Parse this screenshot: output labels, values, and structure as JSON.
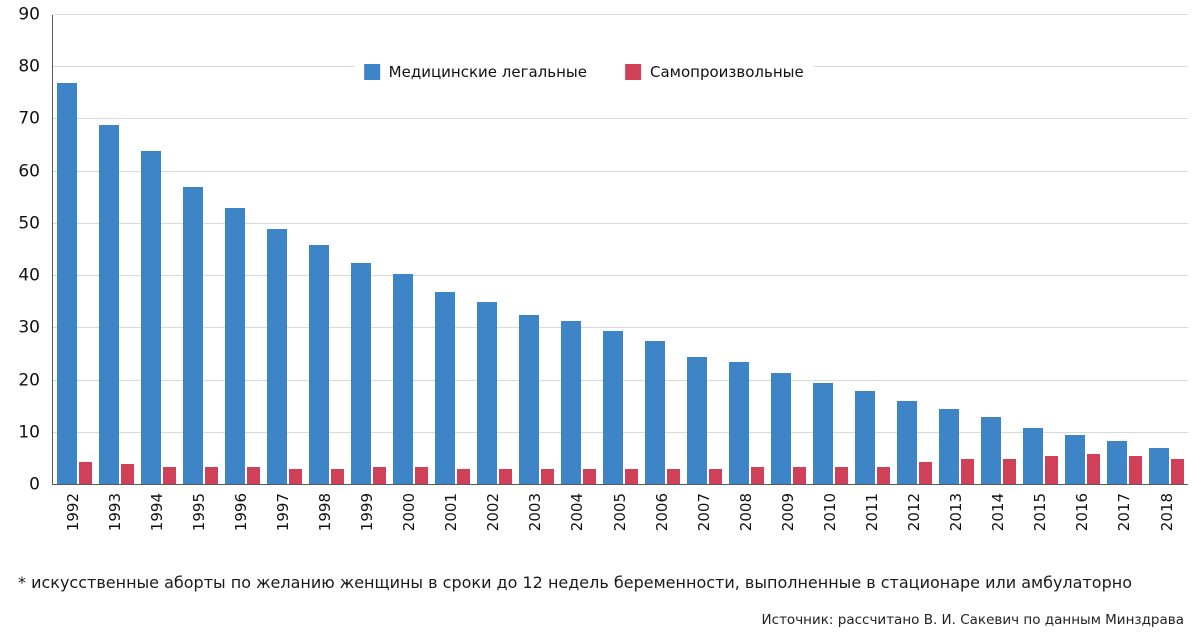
{
  "chart_data": {
    "type": "bar",
    "title": "",
    "xlabel": "",
    "ylabel": "",
    "ylim": [
      0,
      90
    ],
    "ytick_step": 10,
    "grid": true,
    "legend_position": "top-center",
    "categories": [
      "1992",
      "1993",
      "1994",
      "1995",
      "1996",
      "1997",
      "1998",
      "1999",
      "2000",
      "2001",
      "2002",
      "2003",
      "2004",
      "2005",
      "2006",
      "2007",
      "2008",
      "2009",
      "2010",
      "2011",
      "2012",
      "2013",
      "2014",
      "2015",
      "2016",
      "2017",
      "2018"
    ],
    "series": [
      {
        "name": "Медицинские легальные",
        "color": "#3d85c6",
        "values": [
          77,
          69,
          64,
          57,
          53,
          49,
          46,
          42.5,
          40.5,
          37,
          35,
          32.5,
          31.5,
          29.5,
          27.5,
          24.5,
          23.5,
          21.5,
          19.5,
          18,
          16,
          14.5,
          13,
          11,
          9.5,
          8.5,
          7
        ]
      },
      {
        "name": "Самопроизвольные",
        "color": "#d14059",
        "values": [
          4.5,
          4,
          3.5,
          3.5,
          3.5,
          3,
          3,
          3.5,
          3.5,
          3,
          3,
          3,
          3,
          3,
          3,
          3,
          3.5,
          3.5,
          3.5,
          3.5,
          4.5,
          5,
          5,
          5.5,
          6,
          5.5,
          5
        ]
      }
    ]
  },
  "footnote": "* искусственные аборты по желанию женщины в сроки до 12 недель беременности, выполненные в стационаре или амбулаторно",
  "source": "Источник: рассчитано В. И. Сакевич по данным Минздрава"
}
